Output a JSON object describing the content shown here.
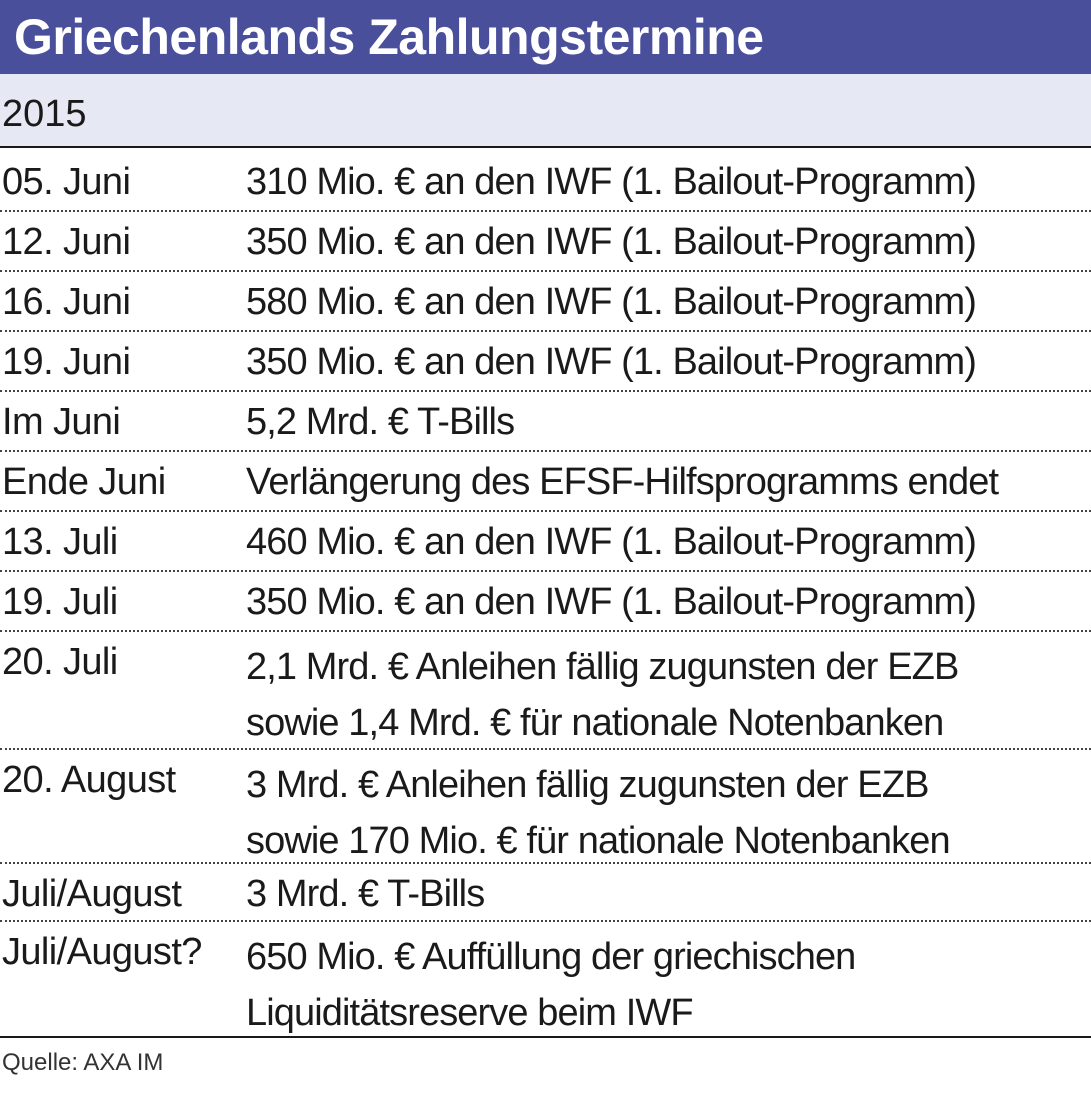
{
  "title": "Griechenlands Zahlungstermine",
  "year": "2015",
  "rows": [
    {
      "date": "05. Juni",
      "desc": "310 Mio. € an den IWF (1. Bailout-Programm)"
    },
    {
      "date": "12. Juni",
      "desc": "350 Mio. € an den IWF (1. Bailout-Programm)"
    },
    {
      "date": "16. Juni",
      "desc": "580 Mio. € an den IWF (1. Bailout-Programm)"
    },
    {
      "date": "19. Juni",
      "desc": "350 Mio. € an den IWF (1. Bailout-Programm)"
    },
    {
      "date": "Im Juni",
      "desc": "5,2 Mrd. € T-Bills"
    },
    {
      "date": "Ende Juni",
      "desc": "Verlängerung des EFSF-Hilfsprogramms endet"
    },
    {
      "date": "13. Juli",
      "desc": "460 Mio. € an den IWF (1. Bailout-Programm)"
    },
    {
      "date": "19. Juli",
      "desc": "350 Mio. € an den IWF (1. Bailout-Programm)"
    },
    {
      "date": "20. Juli",
      "desc": "2,1 Mrd. € Anleihen fällig zugunsten der EZB\nsowie 1,4 Mrd. € für nationale Notenbanken"
    },
    {
      "date": "20. August",
      "desc": "3 Mrd. € Anleihen fällig zugunsten der EZB\nsowie 170 Mio. € für nationale Notenbanken"
    },
    {
      "date": "Juli/August",
      "desc": "3 Mrd. € T-Bills"
    },
    {
      "date": "Juli/August?",
      "desc": "650 Mio. € Auffüllung der griechischen\nLiquiditätsreserve beim IWF"
    }
  ],
  "source": "Quelle: AXA IM",
  "colors": {
    "title_bar": "#4a4f9c",
    "year_bar": "#e6e9f4",
    "text": "#1a1a1a"
  }
}
